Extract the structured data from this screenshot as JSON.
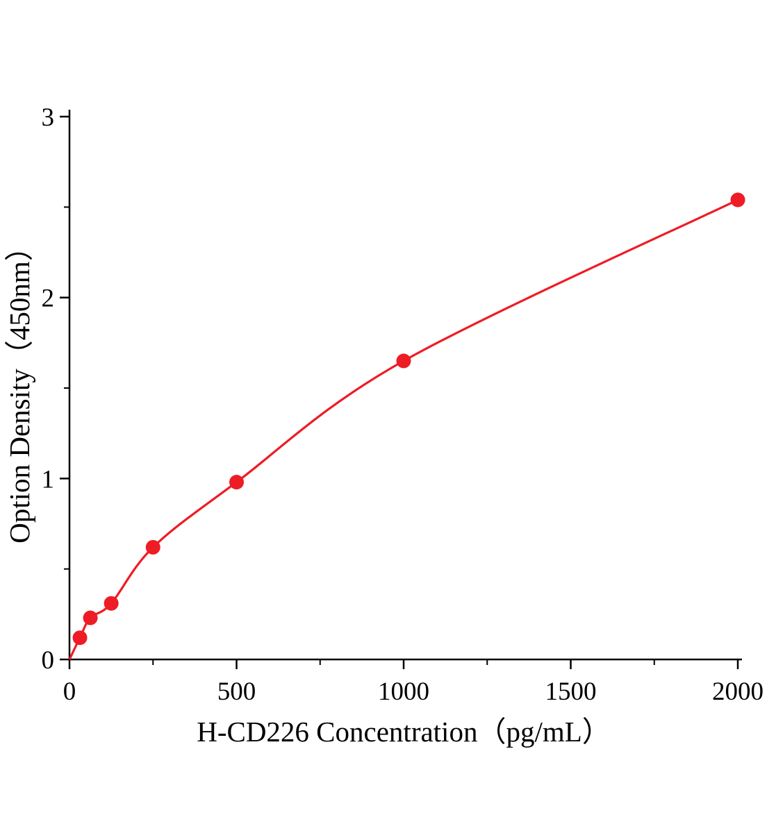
{
  "chart_data": {
    "type": "scatter",
    "title": "",
    "xlabel": "H-CD226 Concentration（pg/mL）",
    "ylabel": "Option Density（450nm）",
    "x": [
      31.25,
      62.5,
      125,
      250,
      500,
      1000,
      2000
    ],
    "y": [
      0.12,
      0.23,
      0.31,
      0.62,
      0.98,
      1.65,
      2.54
    ],
    "curve_start_x": 0,
    "curve_start_y": 0,
    "xlim": [
      0,
      2000
    ],
    "ylim": [
      0,
      3
    ],
    "x_ticks": [
      0,
      500,
      1000,
      1500,
      2000
    ],
    "y_ticks": [
      0,
      1,
      2,
      3
    ],
    "x_minor_ticks": [
      250,
      750,
      1250,
      1750
    ],
    "y_minor_ticks": [
      0.5,
      1.5,
      2.5
    ],
    "point_color": "#ee1c25",
    "line_color": "#ee1c25",
    "axis_color": "#000000",
    "grid": false,
    "legend_position": "none"
  }
}
